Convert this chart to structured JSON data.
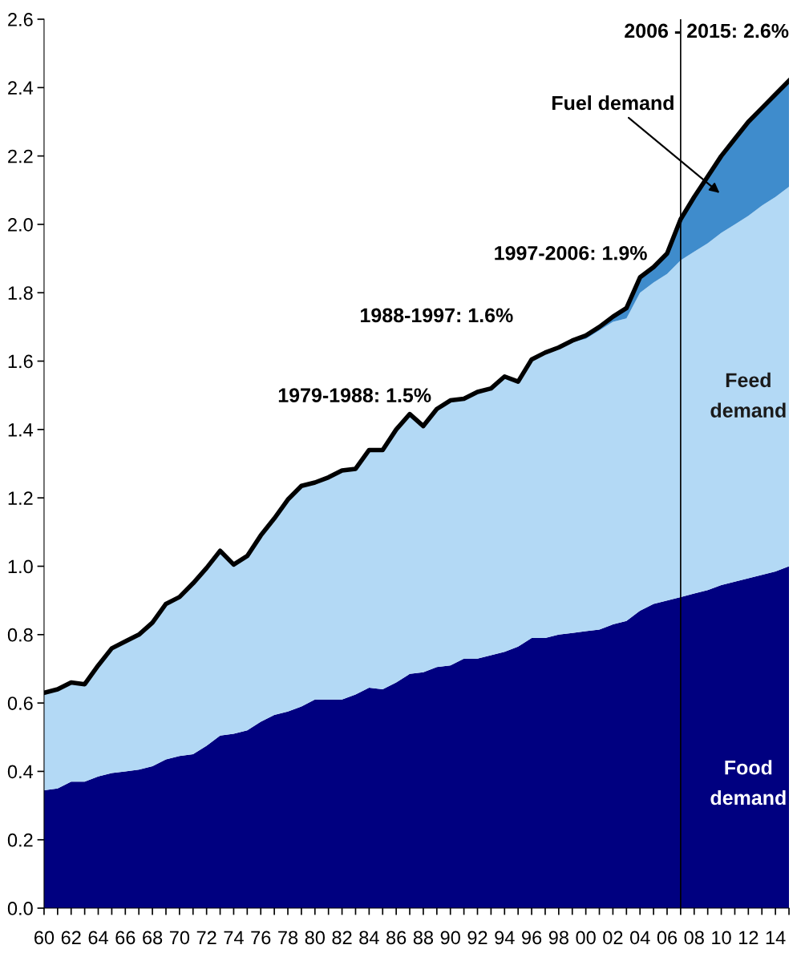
{
  "chart_data": {
    "type": "area",
    "stacked": true,
    "x": [
      1960,
      1961,
      1962,
      1963,
      1964,
      1965,
      1966,
      1967,
      1968,
      1969,
      1970,
      1971,
      1972,
      1973,
      1974,
      1975,
      1976,
      1977,
      1978,
      1979,
      1980,
      1981,
      1982,
      1983,
      1984,
      1985,
      1986,
      1987,
      1988,
      1989,
      1990,
      1991,
      1992,
      1993,
      1994,
      1995,
      1996,
      1997,
      1998,
      1999,
      2000,
      2001,
      2002,
      2003,
      2004,
      2005,
      2006,
      2007,
      2008,
      2009,
      2010,
      2011,
      2012,
      2013,
      2014,
      2015
    ],
    "series": [
      {
        "name": "Food demand",
        "color": "#000080",
        "values": [
          0.345,
          0.35,
          0.37,
          0.37,
          0.385,
          0.395,
          0.4,
          0.405,
          0.415,
          0.435,
          0.445,
          0.45,
          0.475,
          0.505,
          0.51,
          0.52,
          0.545,
          0.565,
          0.575,
          0.59,
          0.61,
          0.61,
          0.61,
          0.625,
          0.645,
          0.64,
          0.66,
          0.685,
          0.69,
          0.705,
          0.71,
          0.73,
          0.73,
          0.74,
          0.75,
          0.765,
          0.79,
          0.79,
          0.8,
          0.805,
          0.81,
          0.815,
          0.83,
          0.84,
          0.87,
          0.89,
          0.9,
          0.91,
          0.92,
          0.93,
          0.945,
          0.955,
          0.965,
          0.975,
          0.985,
          1.0
        ]
      },
      {
        "name": "Feed demand",
        "color": "#b3d9f5",
        "values": [
          0.285,
          0.29,
          0.29,
          0.285,
          0.325,
          0.365,
          0.38,
          0.395,
          0.42,
          0.455,
          0.465,
          0.5,
          0.52,
          0.54,
          0.495,
          0.51,
          0.545,
          0.575,
          0.62,
          0.645,
          0.635,
          0.65,
          0.67,
          0.66,
          0.695,
          0.7,
          0.74,
          0.76,
          0.72,
          0.755,
          0.77,
          0.755,
          0.775,
          0.775,
          0.8,
          0.77,
          0.81,
          0.83,
          0.835,
          0.85,
          0.855,
          0.875,
          0.885,
          0.885,
          0.93,
          0.94,
          0.955,
          0.985,
          1.0,
          1.015,
          1.03,
          1.045,
          1.06,
          1.08,
          1.095,
          1.11
        ]
      },
      {
        "name": "Fuel demand",
        "color": "#3f8ccc",
        "values": [
          0,
          0,
          0,
          0,
          0,
          0,
          0,
          0,
          0,
          0,
          0,
          0,
          0,
          0,
          0,
          0,
          0,
          0,
          0,
          0,
          0,
          0,
          0,
          0,
          0,
          0,
          0,
          0,
          0,
          0,
          0.005,
          0.005,
          0.005,
          0.005,
          0.005,
          0.005,
          0.005,
          0.005,
          0.005,
          0.005,
          0.01,
          0.01,
          0.015,
          0.03,
          0.045,
          0.045,
          0.06,
          0.12,
          0.16,
          0.195,
          0.225,
          0.25,
          0.275,
          0.285,
          0.3,
          0.31
        ]
      }
    ],
    "xlim": [
      1960,
      2015
    ],
    "xticks": [
      {
        "value": 1960,
        "label": "60"
      },
      {
        "value": 1961,
        "label": null
      },
      {
        "value": 1962,
        "label": "62"
      },
      {
        "value": 1963,
        "label": null
      },
      {
        "value": 1964,
        "label": "64"
      },
      {
        "value": 1965,
        "label": null
      },
      {
        "value": 1966,
        "label": "66"
      },
      {
        "value": 1967,
        "label": null
      },
      {
        "value": 1968,
        "label": "68"
      },
      {
        "value": 1969,
        "label": null
      },
      {
        "value": 1970,
        "label": "70"
      },
      {
        "value": 1971,
        "label": null
      },
      {
        "value": 1972,
        "label": "72"
      },
      {
        "value": 1973,
        "label": null
      },
      {
        "value": 1974,
        "label": "74"
      },
      {
        "value": 1975,
        "label": null
      },
      {
        "value": 1976,
        "label": "76"
      },
      {
        "value": 1977,
        "label": null
      },
      {
        "value": 1978,
        "label": "78"
      },
      {
        "value": 1979,
        "label": null
      },
      {
        "value": 1980,
        "label": "80"
      },
      {
        "value": 1981,
        "label": null
      },
      {
        "value": 1982,
        "label": "82"
      },
      {
        "value": 1983,
        "label": null
      },
      {
        "value": 1984,
        "label": "84"
      },
      {
        "value": 1985,
        "label": null
      },
      {
        "value": 1986,
        "label": "86"
      },
      {
        "value": 1987,
        "label": null
      },
      {
        "value": 1988,
        "label": "88"
      },
      {
        "value": 1989,
        "label": null
      },
      {
        "value": 1990,
        "label": "90"
      },
      {
        "value": 1991,
        "label": null
      },
      {
        "value": 1992,
        "label": "92"
      },
      {
        "value": 1993,
        "label": null
      },
      {
        "value": 1994,
        "label": "94"
      },
      {
        "value": 1995,
        "label": null
      },
      {
        "value": 1996,
        "label": "96"
      },
      {
        "value": 1997,
        "label": null
      },
      {
        "value": 1998,
        "label": "98"
      },
      {
        "value": 1999,
        "label": null
      },
      {
        "value": 2000,
        "label": "00"
      },
      {
        "value": 2001,
        "label": null
      },
      {
        "value": 2002,
        "label": "02"
      },
      {
        "value": 2003,
        "label": null
      },
      {
        "value": 2004,
        "label": "04"
      },
      {
        "value": 2005,
        "label": null
      },
      {
        "value": 2006,
        "label": "06"
      },
      {
        "value": 2007,
        "label": null
      },
      {
        "value": 2008,
        "label": "08"
      },
      {
        "value": 2009,
        "label": null
      },
      {
        "value": 2010,
        "label": "10"
      },
      {
        "value": 2011,
        "label": null
      },
      {
        "value": 2012,
        "label": "12"
      },
      {
        "value": 2013,
        "label": null
      },
      {
        "value": 2014,
        "label": "14"
      },
      {
        "value": 2015,
        "label": null
      }
    ],
    "ylim": [
      0,
      2.6
    ],
    "yticks": [
      {
        "value": 0,
        "label": "0.0"
      },
      {
        "value": 0.2,
        "label": "0.2"
      },
      {
        "value": 0.4,
        "label": "0.4"
      },
      {
        "value": 0.6,
        "label": "0.6"
      },
      {
        "value": 0.8,
        "label": "0.8"
      },
      {
        "value": 1.0,
        "label": "1.0"
      },
      {
        "value": 1.2,
        "label": "1.2"
      },
      {
        "value": 1.4,
        "label": "1.4"
      },
      {
        "value": 1.6,
        "label": "1.6"
      },
      {
        "value": 1.8,
        "label": "1.8"
      },
      {
        "value": 2.0,
        "label": "2.0"
      },
      {
        "value": 2.2,
        "label": "2.2"
      },
      {
        "value": 2.4,
        "label": "2.4"
      },
      {
        "value": 2.6,
        "label": "2.6"
      }
    ],
    "ref_lines": [
      {
        "axis": "x",
        "value": 2007,
        "color": "#000000"
      }
    ],
    "annotations": [
      "1979-1988: 1.5%",
      "1988-1997: 1.6%",
      "1997-2006: 1.9%",
      "2006 - 2015: 2.6%"
    ],
    "grid": false,
    "legend": false
  }
}
